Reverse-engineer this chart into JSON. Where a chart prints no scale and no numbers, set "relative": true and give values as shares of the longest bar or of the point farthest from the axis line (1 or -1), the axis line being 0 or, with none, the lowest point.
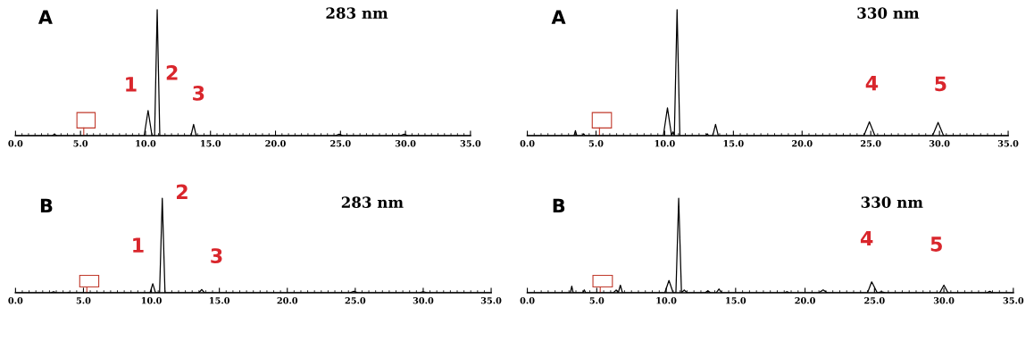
{
  "chart_data": [
    {
      "type": "line",
      "title": "A",
      "subtitle": "283 nm",
      "relative": true,
      "xlim": [
        0,
        35
      ],
      "xticks": [
        {
          "value": 0,
          "label": "0.0"
        },
        {
          "value": 5,
          "label": "5.0"
        },
        {
          "value": 10,
          "label": "10.0"
        },
        {
          "value": 15,
          "label": "15.0"
        },
        {
          "value": 20,
          "label": "20.0"
        },
        {
          "value": 25,
          "label": "25.0"
        },
        {
          "value": 30,
          "label": "30.0"
        },
        {
          "value": 35,
          "label": "35.0"
        }
      ],
      "series": [
        {
          "color": "#000000",
          "x": [
            0,
            2.8,
            3.0,
            3.2,
            4.5,
            9.9,
            10.2,
            10.5,
            10.7,
            10.9,
            11.1,
            13.5,
            13.7,
            13.9,
            24.6,
            24.9,
            25.2,
            29.6,
            29.9,
            30.2,
            35
          ],
          "values": [
            0,
            0,
            0.01,
            0,
            0,
            0,
            0.2,
            0,
            0,
            1,
            0,
            0,
            0.09,
            0,
            0,
            0.012,
            0,
            0,
            0.012,
            0,
            0
          ]
        }
      ],
      "annotations": [
        {
          "text": "1",
          "x": 10.2,
          "y": 0.2
        },
        {
          "text": "2",
          "x": 10.9,
          "y": 1
        },
        {
          "text": "3",
          "x": 13.7,
          "y": 0.09
        }
      ]
    },
    {
      "type": "line",
      "title": "A",
      "subtitle": "330 nm",
      "relative": true,
      "xlim": [
        0,
        35
      ],
      "xticks": [
        {
          "value": 0,
          "label": "0.0"
        },
        {
          "value": 5,
          "label": "5.0"
        },
        {
          "value": 10,
          "label": "10.0"
        },
        {
          "value": 15,
          "label": "15.0"
        },
        {
          "value": 20,
          "label": "20.0"
        },
        {
          "value": 25,
          "label": "25.0"
        },
        {
          "value": 30,
          "label": "30.0"
        },
        {
          "value": 35,
          "label": "35.0"
        }
      ],
      "series": [
        {
          "color": "#000000",
          "x": [
            0,
            3.4,
            3.5,
            3.6,
            4.0,
            4.1,
            4.2,
            9.9,
            10.2,
            10.5,
            10.6,
            10.7,
            10.9,
            11.1,
            13.0,
            13.1,
            13.2,
            13.5,
            13.7,
            13.9,
            24.5,
            24.9,
            25.3,
            29.5,
            29.9,
            30.3,
            35
          ],
          "values": [
            0,
            0,
            0.04,
            0,
            0,
            0.015,
            0,
            0,
            0.22,
            0,
            0.03,
            0,
            1,
            0,
            0,
            0.015,
            0,
            0,
            0.09,
            0,
            0,
            0.11,
            0,
            0,
            0.105,
            0,
            0
          ]
        }
      ],
      "annotations": [
        {
          "text": "4",
          "x": 24.9,
          "y": 0.11
        },
        {
          "text": "5",
          "x": 29.9,
          "y": 0.105
        }
      ]
    },
    {
      "type": "line",
      "title": "B",
      "subtitle": "283 nm",
      "relative": true,
      "xlim": [
        0,
        35
      ],
      "xticks": [
        {
          "value": 0,
          "label": "0.0"
        },
        {
          "value": 5,
          "label": "5.0"
        },
        {
          "value": 10,
          "label": "10.0"
        },
        {
          "value": 15,
          "label": "15.0"
        },
        {
          "value": 20,
          "label": "20.0"
        },
        {
          "value": 25,
          "label": "25.0"
        },
        {
          "value": 30,
          "label": "30.0"
        },
        {
          "value": 35,
          "label": "35.0"
        }
      ],
      "series": [
        {
          "color": "#000000",
          "x": [
            0,
            2.6,
            2.8,
            3.0,
            3.8,
            3.9,
            4.0,
            9.9,
            10.1,
            10.3,
            10.6,
            10.8,
            11.0,
            13.5,
            13.7,
            13.9,
            24.6,
            24.9,
            25.2,
            29.7,
            30.0,
            30.3,
            35
          ],
          "values": [
            0,
            0,
            0.01,
            0,
            0,
            0.005,
            0,
            0,
            0.095,
            0,
            0,
            1,
            0,
            0,
            0.035,
            0,
            0,
            0.015,
            0,
            0,
            0.012,
            0,
            0
          ]
        }
      ],
      "annotations": [
        {
          "text": "1",
          "x": 10.1,
          "y": 0.095
        },
        {
          "text": "2",
          "x": 10.8,
          "y": 1
        },
        {
          "text": "3",
          "x": 13.7,
          "y": 0.035
        }
      ]
    },
    {
      "type": "line",
      "title": "B",
      "subtitle": "330 nm",
      "relative": true,
      "xlim": [
        0,
        35
      ],
      "xticks": [
        {
          "value": 0,
          "label": "0.0"
        },
        {
          "value": 5,
          "label": "5.0"
        },
        {
          "value": 10,
          "label": "10.0"
        },
        {
          "value": 15,
          "label": "15.0"
        },
        {
          "value": 20,
          "label": "20.0"
        },
        {
          "value": 25,
          "label": "25.0"
        },
        {
          "value": 30,
          "label": "30.0"
        },
        {
          "value": 35,
          "label": "35.0"
        }
      ],
      "series": [
        {
          "color": "#000000",
          "x": [
            0,
            3.1,
            3.2,
            3.3,
            4.0,
            4.1,
            4.2,
            6.2,
            6.4,
            6.55,
            6.7,
            6.85,
            9.9,
            10.2,
            10.5,
            10.7,
            10.9,
            11.1,
            11.3,
            11.5,
            12.8,
            13.0,
            13.2,
            13.6,
            13.8,
            14.0,
            18.5,
            18.7,
            18.9,
            21.0,
            21.3,
            21.6,
            24.5,
            24.8,
            25.2,
            25.5,
            25.8,
            29.7,
            30.0,
            30.3,
            33.1,
            33.3,
            33.5,
            35
          ],
          "values": [
            0,
            0,
            0.07,
            0,
            0,
            0.03,
            0,
            0,
            0.03,
            0,
            0.08,
            0,
            0,
            0.13,
            0,
            0,
            1,
            0,
            0.03,
            0,
            0,
            0.02,
            0,
            0,
            0.04,
            0,
            0,
            0.01,
            0,
            0,
            0.03,
            0,
            0,
            0.115,
            0,
            0.01,
            0,
            0,
            0.08,
            0,
            0,
            0.015,
            0,
            0
          ]
        }
      ],
      "annotations": [
        {
          "text": "4",
          "x": 24.8,
          "y": 0.115
        },
        {
          "text": "5",
          "x": 30.0,
          "y": 0.08
        }
      ]
    }
  ]
}
